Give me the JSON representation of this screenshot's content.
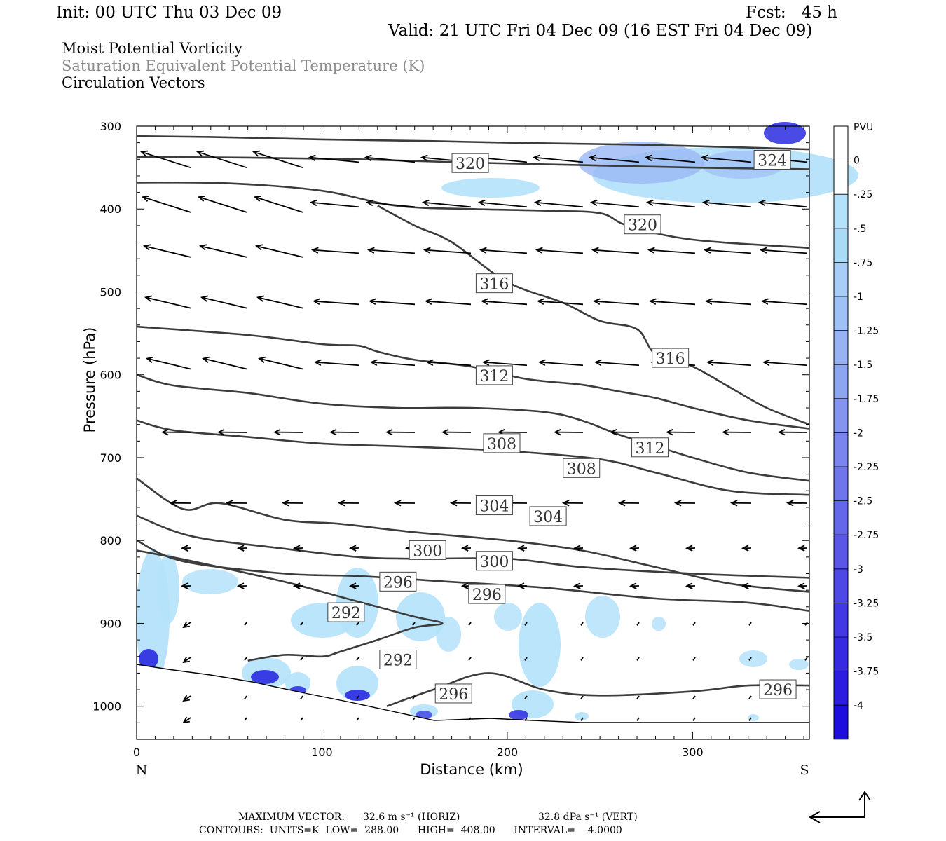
{
  "header": {
    "init": "Init: 00 UTC Thu 03 Dec 09",
    "fcst": "Fcst:   45 h",
    "valid": "Valid: 21 UTC Fri 04 Dec 09 (16 EST Fri 04 Dec 09)",
    "field1": "Moist Potential Vorticity",
    "field2": "Saturation Equivalent Potential Temperature (K)",
    "field3": "Circulation Vectors"
  },
  "footer": {
    "max_vector_label": "MAXIMUM VECTOR:",
    "max_horiz": "32.6 m s⁻¹ (HORIZ)",
    "max_vert": "32.8 dPa s⁻¹ (VERT)",
    "contours": "CONTOURS:  UNITS=K  LOW=  288.00      HIGH=  408.00      INTERVAL=    4.0000"
  },
  "colors": {
    "contour": "#3c3c3c",
    "vector": "#000000",
    "pv_light": "#b4e2fa",
    "pv_mid": "#9ab8f5",
    "pv_strong": "#2a2ae0"
  },
  "chart_data": {
    "type": "cross-section",
    "xlabel": "Distance (km)",
    "ylabel": "Pressure (hPa)",
    "x_ticks": [
      "0",
      "100",
      "200",
      "300"
    ],
    "x_tick_values": [
      0,
      100,
      200,
      300
    ],
    "y_ticks": [
      "300",
      "400",
      "500",
      "600",
      "700",
      "800",
      "900",
      "1000"
    ],
    "y_tick_values": [
      300,
      400,
      500,
      600,
      700,
      800,
      900,
      1000
    ],
    "xlim": [
      0,
      363
    ],
    "ylim": [
      300,
      1040
    ],
    "left_end": "N",
    "right_end": "S",
    "colorbar": {
      "unit": "PVU",
      "labels": [
        "0",
        "-.25",
        "-.5",
        "-.75",
        "-1",
        "-1.25",
        "-1.5",
        "-1.75",
        "-2",
        "-2.25",
        "-2.5",
        "-2.75",
        "-3",
        "-3.25",
        "-3.5",
        "-3.75",
        "-4"
      ],
      "colors": [
        "#ffffff",
        "#ffffff",
        "#b4e2fa",
        "#a9dbf7",
        "#a8cdf8",
        "#9ec2f7",
        "#98b3f4",
        "#8da6f2",
        "#8495f0",
        "#7a86ee",
        "#6f76ec",
        "#6567ea",
        "#5a57e8",
        "#4e48e6",
        "#4239e4",
        "#372be2",
        "#2b1ce0",
        "#1e0ede"
      ]
    },
    "contours": [
      {
        "label": "320",
        "points": [
          [
            0,
            312
          ],
          [
            40,
            313
          ],
          [
            100,
            316
          ],
          [
            160,
            318
          ],
          [
            200,
            320
          ],
          [
            260,
            322
          ],
          [
            300,
            324
          ],
          [
            363,
            328
          ]
        ]
      },
      {
        "label": "324",
        "points": [
          [
            0,
            337
          ],
          [
            60,
            338
          ],
          [
            120,
            340
          ],
          [
            180,
            344
          ],
          [
            240,
            347
          ],
          [
            300,
            350
          ],
          [
            363,
            352
          ]
        ]
      },
      {
        "label": "320",
        "points": [
          [
            0,
            368
          ],
          [
            50,
            369
          ],
          [
            100,
            378
          ],
          [
            140,
            396
          ],
          [
            180,
            400
          ],
          [
            220,
            402
          ],
          [
            250,
            405
          ],
          [
            265,
            420
          ],
          [
            300,
            437
          ],
          [
            363,
            447
          ]
        ]
      },
      {
        "label": "316",
        "points": [
          [
            0,
            542
          ],
          [
            60,
            552
          ],
          [
            100,
            563
          ],
          [
            120,
            565
          ],
          [
            130,
            572
          ],
          [
            150,
            582
          ],
          [
            180,
            590
          ],
          [
            210,
            605
          ],
          [
            240,
            612
          ],
          [
            260,
            620
          ],
          [
            280,
            628
          ],
          [
            300,
            640
          ],
          [
            330,
            655
          ],
          [
            363,
            665
          ]
        ]
      },
      {
        "label": "316",
        "points": [
          [
            130,
            396
          ],
          [
            150,
            420
          ],
          [
            170,
            440
          ],
          [
            200,
            488
          ],
          [
            230,
            513
          ],
          [
            250,
            535
          ],
          [
            270,
            545
          ],
          [
            280,
            575
          ],
          [
            300,
            590
          ],
          [
            320,
            615
          ],
          [
            340,
            640
          ],
          [
            363,
            660
          ]
        ]
      },
      {
        "label": "312",
        "points": [
          [
            0,
            600
          ],
          [
            20,
            613
          ],
          [
            60,
            622
          ],
          [
            100,
            635
          ],
          [
            140,
            640
          ],
          [
            180,
            640
          ],
          [
            220,
            645
          ],
          [
            240,
            655
          ],
          [
            260,
            672
          ],
          [
            280,
            686
          ],
          [
            300,
            700
          ],
          [
            330,
            718
          ],
          [
            363,
            728
          ]
        ]
      },
      {
        "label": "308",
        "points": [
          [
            0,
            655
          ],
          [
            20,
            667
          ],
          [
            60,
            675
          ],
          [
            100,
            683
          ],
          [
            150,
            687
          ],
          [
            200,
            692
          ],
          [
            250,
            702
          ],
          [
            280,
            718
          ],
          [
            320,
            740
          ],
          [
            363,
            745
          ]
        ]
      },
      {
        "label": "304",
        "points": [
          [
            0,
            725
          ],
          [
            25,
            762
          ],
          [
            45,
            755
          ],
          [
            80,
            775
          ],
          [
            110,
            780
          ],
          [
            150,
            790
          ],
          [
            200,
            800
          ],
          [
            240,
            812
          ],
          [
            280,
            832
          ],
          [
            320,
            852
          ],
          [
            363,
            862
          ]
        ]
      },
      {
        "label": "300",
        "points": [
          [
            0,
            770
          ],
          [
            30,
            795
          ],
          [
            80,
            810
          ],
          [
            120,
            820
          ],
          [
            150,
            822
          ],
          [
            200,
            822
          ],
          [
            240,
            832
          ],
          [
            300,
            840
          ],
          [
            363,
            845
          ]
        ]
      },
      {
        "label": "296",
        "points": [
          [
            0,
            800
          ],
          [
            25,
            825
          ],
          [
            80,
            840
          ],
          [
            120,
            843
          ],
          [
            170,
            850
          ],
          [
            220,
            857
          ],
          [
            280,
            870
          ],
          [
            330,
            875
          ],
          [
            363,
            885
          ]
        ]
      },
      {
        "label": "292",
        "points": [
          [
            0,
            812
          ],
          [
            30,
            825
          ],
          [
            80,
            850
          ],
          [
            110,
            868
          ],
          [
            130,
            880
          ],
          [
            150,
            892
          ],
          [
            165,
            900
          ],
          [
            150,
            905
          ],
          [
            130,
            920
          ],
          [
            110,
            934
          ],
          [
            100,
            940
          ],
          [
            80,
            938
          ],
          [
            60,
            945
          ]
        ]
      },
      {
        "label": "296",
        "points": [
          [
            135,
            1000
          ],
          [
            160,
            980
          ],
          [
            190,
            960
          ],
          [
            220,
            980
          ],
          [
            250,
            987
          ],
          [
            300,
            982
          ],
          [
            330,
            975
          ],
          [
            363,
            975
          ]
        ]
      }
    ]
  }
}
